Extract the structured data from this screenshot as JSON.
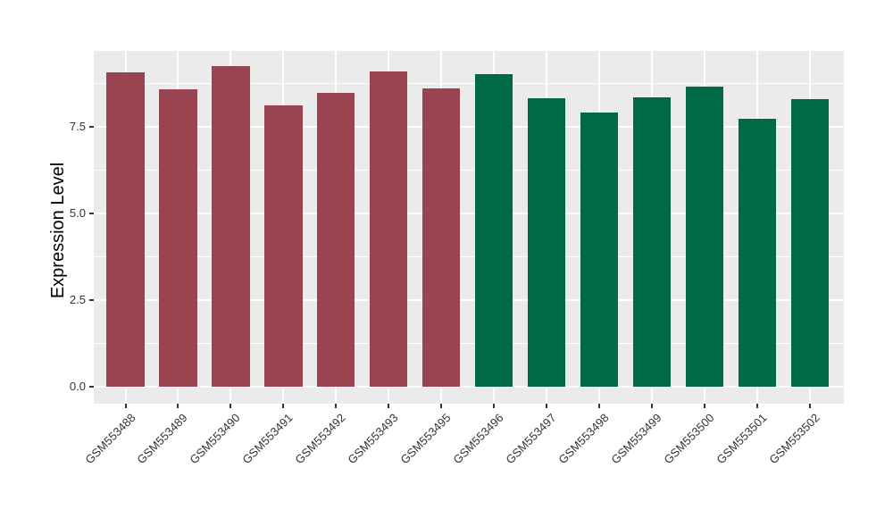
{
  "chart_data": {
    "type": "bar",
    "title": "",
    "xlabel": "",
    "ylabel": "Expression Level",
    "categories": [
      "GSM553488",
      "GSM553489",
      "GSM553490",
      "GSM553491",
      "GSM553492",
      "GSM553493",
      "GSM553495",
      "GSM553496",
      "GSM553497",
      "GSM553498",
      "GSM553499",
      "GSM553500",
      "GSM553501",
      "GSM553502"
    ],
    "values": [
      9.06,
      8.57,
      9.24,
      8.1,
      8.47,
      9.1,
      8.61,
      9.02,
      8.33,
      7.9,
      8.35,
      8.64,
      7.73,
      8.29
    ],
    "bar_groups": [
      "red",
      "red",
      "red",
      "red",
      "red",
      "red",
      "red",
      "green",
      "green",
      "green",
      "green",
      "green",
      "green",
      "green"
    ],
    "group_colors": {
      "red": "#994551",
      "green": "#006945"
    },
    "ylim": [
      0,
      9.68
    ],
    "yticks": [
      0,
      2.5,
      5,
      7.5
    ],
    "ytick_labels": [
      "0.0",
      "2.5",
      "5.0",
      "7.5"
    ],
    "yticks_minor": [
      1.25,
      3.75,
      6.25,
      8.75
    ],
    "grid": "major+minor horizontal white, vertical major at each category",
    "legend_position": "none",
    "panel_background": "#EBEBEB",
    "grid_color": "#FFFFFF",
    "tick_color": "#333333",
    "tick_label_color": "#343434",
    "x_label_rotation_deg": 45
  }
}
